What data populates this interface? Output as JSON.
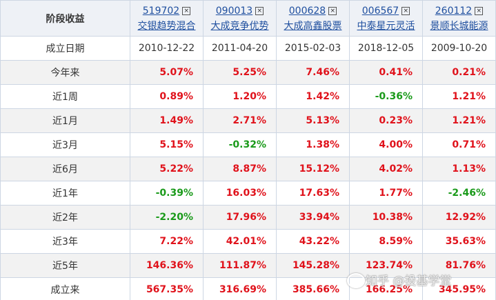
{
  "header": {
    "title": "阶段收益",
    "funds": [
      {
        "code": "519702",
        "name": "交银趋势混合"
      },
      {
        "code": "090013",
        "name": "大成竞争优势"
      },
      {
        "code": "000628",
        "name": "大成高鑫股票"
      },
      {
        "code": "006567",
        "name": "中泰星元灵活"
      },
      {
        "code": "260112",
        "name": "景顺长城能源"
      }
    ]
  },
  "table": {
    "rows": [
      [
        "成立日期",
        "2010-12-22",
        "2011-04-20",
        "2015-02-03",
        "2018-12-05",
        "2009-10-20"
      ],
      [
        "今年来",
        "5.07%",
        "5.25%",
        "7.46%",
        "0.41%",
        "0.21%"
      ],
      [
        "近1周",
        "0.89%",
        "1.20%",
        "1.42%",
        "-0.36%",
        "1.21%"
      ],
      [
        "近1月",
        "1.49%",
        "2.71%",
        "5.13%",
        "0.23%",
        "1.21%"
      ],
      [
        "近3月",
        "5.15%",
        "-0.32%",
        "1.38%",
        "4.00%",
        "0.71%"
      ],
      [
        "近6月",
        "5.22%",
        "8.87%",
        "15.12%",
        "4.02%",
        "1.13%"
      ],
      [
        "近1年",
        "-0.39%",
        "16.03%",
        "17.63%",
        "1.77%",
        "-2.46%"
      ],
      [
        "近2年",
        "-2.20%",
        "17.96%",
        "33.94%",
        "10.38%",
        "12.92%"
      ],
      [
        "近3年",
        "7.22%",
        "42.01%",
        "43.22%",
        "8.59%",
        "35.63%"
      ],
      [
        "近5年",
        "146.36%",
        "111.87%",
        "145.28%",
        "123.74%",
        "81.76%"
      ],
      [
        "成立来",
        "567.35%",
        "316.69%",
        "385.66%",
        "166.25%",
        "345.95%"
      ]
    ]
  },
  "watermark": "知乎 @投基学堂"
}
